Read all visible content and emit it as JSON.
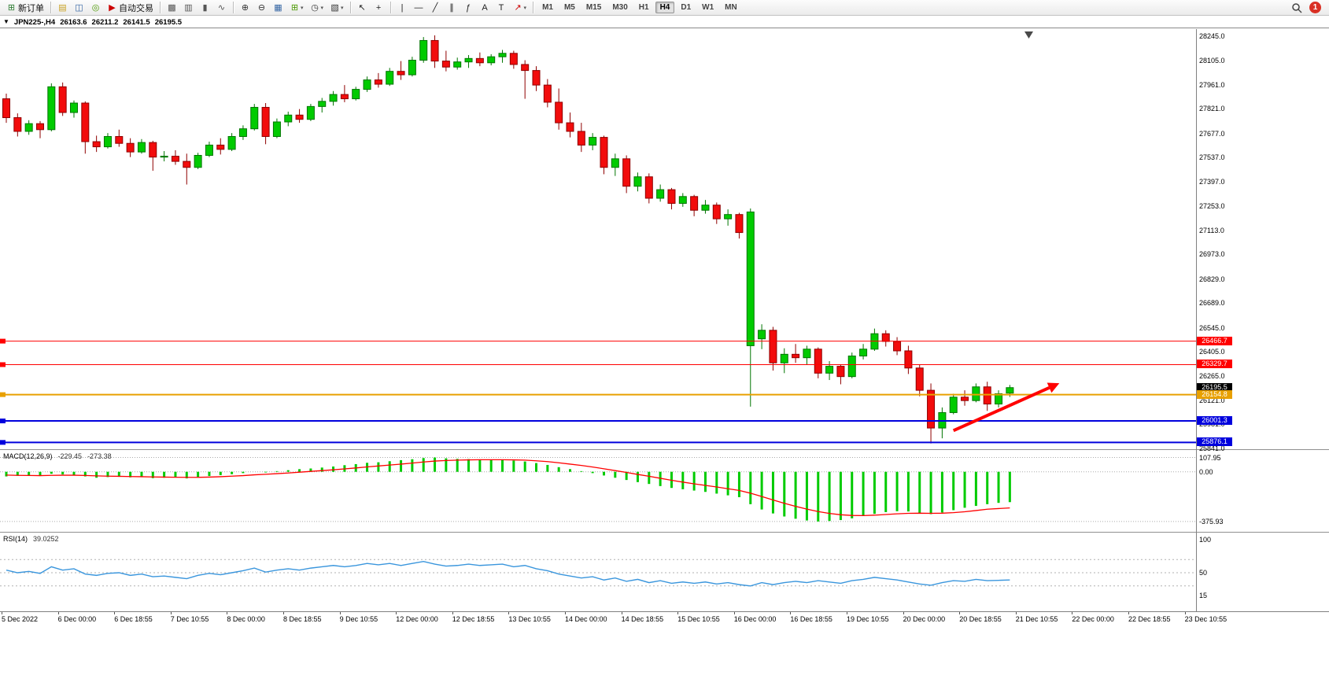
{
  "toolbar": {
    "new_order_label": "新订单",
    "autotrading_label": "自动交易",
    "notification_count": "1",
    "periods": [
      "M1",
      "M5",
      "M15",
      "M30",
      "H1",
      "H4",
      "D1",
      "W1",
      "MN"
    ],
    "active_period": "H4",
    "items": [
      {
        "name": "new-order-button",
        "icon": "order-ticket-icon",
        "glyph": "⊞",
        "color": "#2e7d32",
        "label": "新订单"
      },
      {
        "type": "sep"
      },
      {
        "name": "profiles-button",
        "icon": "profiles-icon",
        "glyph": "▤",
        "color": "#c8a020"
      },
      {
        "name": "market-watch-button",
        "icon": "market-watch-icon",
        "glyph": "◫",
        "color": "#3465a4"
      },
      {
        "name": "navigator-button",
        "icon": "navigator-icon",
        "glyph": "◎",
        "color": "#4e9a06"
      },
      {
        "name": "autotrading-button",
        "icon": "autotrading-icon",
        "glyph": "▶",
        "color": "#cc0000",
        "label": "自动交易"
      },
      {
        "type": "sep"
      },
      {
        "name": "new-chart-button",
        "icon": "new-chart-icon",
        "glyph": "▩",
        "color": "#555555"
      },
      {
        "name": "bar-chart-button",
        "icon": "bar-chart-icon",
        "glyph": "▥",
        "color": "#555555"
      },
      {
        "name": "candlestick-chart-button",
        "icon": "candlestick-icon",
        "glyph": "▮",
        "color": "#555555"
      },
      {
        "name": "line-chart-button",
        "icon": "line-chart-icon",
        "glyph": "∿",
        "color": "#555555"
      },
      {
        "type": "sep"
      },
      {
        "name": "zoom-in-button",
        "icon": "zoom-in-icon",
        "glyph": "⊕",
        "color": "#333333"
      },
      {
        "name": "zoom-out-button",
        "icon": "zoom-out-icon",
        "glyph": "⊖",
        "color": "#333333"
      },
      {
        "name": "tile-windows-button",
        "icon": "tile-windows-icon",
        "glyph": "▦",
        "color": "#3465a4"
      },
      {
        "name": "indicators-button",
        "icon": "indicators-icon",
        "glyph": "⊞",
        "color": "#4e9a06",
        "caret": true
      },
      {
        "name": "timeframes-button",
        "icon": "clock-icon",
        "glyph": "◷",
        "color": "#333333",
        "caret": true
      },
      {
        "name": "templates-button",
        "icon": "templates-icon",
        "glyph": "▧",
        "color": "#333333",
        "caret": true
      },
      {
        "type": "sep"
      },
      {
        "name": "cursor-button",
        "icon": "cursor-icon",
        "glyph": "↖",
        "color": "#222222"
      },
      {
        "name": "crosshair-button",
        "icon": "crosshair-icon",
        "glyph": "+",
        "color": "#222222"
      },
      {
        "type": "sep"
      },
      {
        "name": "vertical-line-button",
        "icon": "vertical-line-icon",
        "glyph": "|",
        "color": "#222222"
      },
      {
        "name": "horizontal-line-button",
        "icon": "horizontal-line-icon",
        "glyph": "—",
        "color": "#222222"
      },
      {
        "name": "trendline-button",
        "icon": "trendline-icon",
        "glyph": "╱",
        "color": "#222222"
      },
      {
        "name": "channel-button",
        "icon": "channel-icon",
        "glyph": "∥",
        "color": "#222222"
      },
      {
        "name": "fibonacci-button",
        "icon": "fibonacci-icon",
        "glyph": "ƒ",
        "color": "#222222"
      },
      {
        "name": "text-button",
        "icon": "text-icon",
        "glyph": "A",
        "color": "#222222"
      },
      {
        "name": "text-label-button",
        "icon": "text-label-icon",
        "glyph": "T",
        "color": "#222222"
      },
      {
        "name": "arrows-button",
        "icon": "arrow-symbol-icon",
        "glyph": "↗",
        "color": "#cc0000",
        "caret": true
      },
      {
        "type": "sep"
      }
    ]
  },
  "chart_header": {
    "dropdown_glyph": "▼",
    "symbol": "JPN225-,H4",
    "open": "26163.6",
    "high": "26211.2",
    "low": "26141.5",
    "close": "26195.5"
  },
  "chart_data": {
    "type": "candlestick",
    "symbol": "JPN225-",
    "timeframe": "H4",
    "colors": {
      "up": "#00cb00",
      "up_border": "#007500",
      "down": "#f20c0c",
      "down_border": "#8f0000"
    },
    "price_axis": [
      28245.0,
      28105.0,
      27961.0,
      27821.0,
      27677.0,
      27537.0,
      27397.0,
      27253.0,
      27113.0,
      26973.0,
      26829.0,
      26689.0,
      26545.0,
      26405.0,
      26265.0,
      26121.0,
      25981.0,
      25841.0
    ],
    "price_range": {
      "max": 28245.0,
      "min": 25841.0
    },
    "candles": [
      [
        27880,
        27910,
        27740,
        27770
      ],
      [
        27770,
        27795,
        27660,
        27690
      ],
      [
        27690,
        27755,
        27670,
        27735
      ],
      [
        27735,
        27750,
        27650,
        27700
      ],
      [
        27700,
        27970,
        27690,
        27950
      ],
      [
        27950,
        27975,
        27780,
        27800
      ],
      [
        27800,
        27870,
        27770,
        27855
      ],
      [
        27855,
        27865,
        27560,
        27630
      ],
      [
        27630,
        27665,
        27570,
        27600
      ],
      [
        27600,
        27680,
        27590,
        27660
      ],
      [
        27660,
        27700,
        27600,
        27620
      ],
      [
        27620,
        27650,
        27540,
        27570
      ],
      [
        27570,
        27645,
        27560,
        27625
      ],
      [
        27625,
        27635,
        27460,
        27540
      ],
      [
        27540,
        27575,
        27515,
        27545
      ],
      [
        27545,
        27580,
        27495,
        27515
      ],
      [
        27515,
        27560,
        27380,
        27480
      ],
      [
        27480,
        27565,
        27470,
        27550
      ],
      [
        27550,
        27630,
        27540,
        27610
      ],
      [
        27610,
        27650,
        27555,
        27585
      ],
      [
        27585,
        27680,
        27575,
        27660
      ],
      [
        27660,
        27725,
        27640,
        27705
      ],
      [
        27705,
        27850,
        27695,
        27830
      ],
      [
        27830,
        27855,
        27615,
        27660
      ],
      [
        27660,
        27765,
        27650,
        27745
      ],
      [
        27745,
        27805,
        27720,
        27785
      ],
      [
        27785,
        27820,
        27740,
        27760
      ],
      [
        27760,
        27850,
        27750,
        27835
      ],
      [
        27835,
        27885,
        27800,
        27865
      ],
      [
        27865,
        27925,
        27840,
        27905
      ],
      [
        27905,
        27960,
        27860,
        27880
      ],
      [
        27880,
        27950,
        27870,
        27935
      ],
      [
        27935,
        28010,
        27920,
        27990
      ],
      [
        27990,
        28030,
        27945,
        27965
      ],
      [
        27965,
        28060,
        27955,
        28040
      ],
      [
        28040,
        28100,
        27990,
        28020
      ],
      [
        28020,
        28125,
        28010,
        28105
      ],
      [
        28105,
        28240,
        28090,
        28220
      ],
      [
        28220,
        28250,
        28060,
        28100
      ],
      [
        28100,
        28160,
        28040,
        28065
      ],
      [
        28065,
        28120,
        28050,
        28095
      ],
      [
        28095,
        28135,
        28060,
        28115
      ],
      [
        28115,
        28150,
        28070,
        28090
      ],
      [
        28090,
        28140,
        28075,
        28125
      ],
      [
        28125,
        28165,
        28090,
        28145
      ],
      [
        28145,
        28160,
        28055,
        28080
      ],
      [
        28080,
        28105,
        27880,
        28045
      ],
      [
        28045,
        28070,
        27925,
        27960
      ],
      [
        27960,
        27995,
        27830,
        27860
      ],
      [
        27860,
        27940,
        27700,
        27740
      ],
      [
        27740,
        27800,
        27655,
        27690
      ],
      [
        27690,
        27740,
        27570,
        27610
      ],
      [
        27610,
        27680,
        27580,
        27655
      ],
      [
        27655,
        27665,
        27440,
        27480
      ],
      [
        27480,
        27560,
        27430,
        27530
      ],
      [
        27530,
        27550,
        27330,
        27370
      ],
      [
        27370,
        27450,
        27340,
        27425
      ],
      [
        27425,
        27445,
        27270,
        27300
      ],
      [
        27300,
        27380,
        27280,
        27350
      ],
      [
        27350,
        27360,
        27235,
        27270
      ],
      [
        27270,
        27330,
        27250,
        27310
      ],
      [
        27310,
        27320,
        27195,
        27230
      ],
      [
        27230,
        27290,
        27210,
        27260
      ],
      [
        27260,
        27275,
        27150,
        27180
      ],
      [
        27180,
        27235,
        27140,
        27205
      ],
      [
        27205,
        27215,
        27065,
        27100
      ],
      [
        26440,
        27240,
        26085,
        27220
      ],
      [
        26480,
        26565,
        26420,
        26530
      ],
      [
        26530,
        26550,
        26295,
        26340
      ],
      [
        26340,
        26425,
        26280,
        26390
      ],
      [
        26390,
        26450,
        26340,
        26370
      ],
      [
        26370,
        26440,
        26330,
        26420
      ],
      [
        26420,
        26430,
        26250,
        26280
      ],
      [
        26280,
        26350,
        26240,
        26320
      ],
      [
        26320,
        26330,
        26215,
        26260
      ],
      [
        26260,
        26400,
        26250,
        26380
      ],
      [
        26380,
        26450,
        26360,
        26420
      ],
      [
        26420,
        26540,
        26410,
        26510
      ],
      [
        26510,
        26530,
        26435,
        26465
      ],
      [
        26465,
        26490,
        26385,
        26410
      ],
      [
        26410,
        26440,
        26275,
        26310
      ],
      [
        26310,
        26330,
        26145,
        26180
      ],
      [
        26180,
        26220,
        25870,
        25960
      ],
      [
        25960,
        26080,
        25900,
        26050
      ],
      [
        26050,
        26160,
        26040,
        26140
      ],
      [
        26140,
        26180,
        26090,
        26120
      ],
      [
        26120,
        26220,
        26110,
        26200
      ],
      [
        26200,
        26230,
        26060,
        26100
      ],
      [
        26100,
        26180,
        26080,
        26160
      ],
      [
        26163.6,
        26211.2,
        26141.5,
        26195.5
      ]
    ],
    "hlines": [
      {
        "price": 26466.7,
        "color": "#ff0000",
        "badge": "26466.7",
        "width": 1
      },
      {
        "price": 26329.7,
        "color": "#ff0000",
        "badge": "26329.7",
        "width": 1
      },
      {
        "price": 26154.8,
        "color": "#e8a000",
        "badge": "26154.8",
        "width": 2
      },
      {
        "price": 26001.3,
        "color": "#0000dd",
        "badge": "26001.3",
        "width": 2
      },
      {
        "price": 25876.1,
        "color": "#0000dd",
        "badge": "25876.1",
        "width": 2
      }
    ],
    "current_price": {
      "value": 26195.5,
      "badge": "26195.5",
      "badge_bg": "#000000"
    },
    "arrow": {
      "bar_from": 84.0,
      "price_from": 25945,
      "bar_to": 92.5,
      "price_to": 26195,
      "color": "#ff0000"
    },
    "time_axis": [
      "5 Dec 2022",
      "6 Dec 00:00",
      "6 Dec 18:55",
      "7 Dec 10:55",
      "8 Dec 00:00",
      "8 Dec 18:55",
      "9 Dec 10:55",
      "12 Dec 00:00",
      "12 Dec 18:55",
      "13 Dec 10:55",
      "14 Dec 00:00",
      "14 Dec 18:55",
      "15 Dec 10:55",
      "16 Dec 00:00",
      "16 Dec 18:55",
      "19 Dec 10:55",
      "20 Dec 00:00",
      "20 Dec 18:55",
      "21 Dec 10:55",
      "22 Dec 00:00",
      "22 Dec 18:55",
      "23 Dec 10:55"
    ],
    "macd": {
      "label": "MACD(12,26,9)",
      "value_main": "-229.45",
      "value_signal": "-273.38",
      "hist_color": "#00cb00",
      "signal_color": "#ff0000",
      "scale": [
        "107.95",
        "0.00",
        "-375.93"
      ],
      "scale_values": [
        107.95,
        0,
        -375.93
      ],
      "histogram": [
        -35,
        -30,
        -28,
        -32,
        -15,
        -20,
        -25,
        -35,
        -45,
        -40,
        -38,
        -42,
        -40,
        -48,
        -45,
        -42,
        -50,
        -40,
        -32,
        -25,
        -18,
        -10,
        0,
        -5,
        5,
        12,
        20,
        25,
        32,
        40,
        50,
        58,
        68,
        72,
        80,
        88,
        95,
        104,
        107.95,
        102,
        98,
        96,
        94,
        92,
        90,
        85,
        78,
        66,
        52,
        35,
        20,
        5,
        -10,
        -28,
        -45,
        -62,
        -78,
        -92,
        -108,
        -122,
        -132,
        -142,
        -152,
        -165,
        -178,
        -192,
        -245,
        -285,
        -315,
        -338,
        -355,
        -368,
        -375.93,
        -372,
        -365,
        -352,
        -335,
        -318,
        -305,
        -298,
        -300,
        -312,
        -320,
        -308,
        -290,
        -272,
        -258,
        -245,
        -235,
        -229.45
      ],
      "signal": [
        -25,
        -27,
        -28,
        -29,
        -27,
        -26,
        -26,
        -28,
        -31,
        -33,
        -34,
        -36,
        -37,
        -39,
        -40,
        -41,
        -42,
        -42,
        -40,
        -37,
        -33,
        -29,
        -23,
        -19,
        -14,
        -9,
        -3,
        3,
        9,
        15,
        22,
        29,
        37,
        44,
        51,
        58,
        66,
        74,
        81,
        85,
        88,
        90,
        91,
        91,
        91,
        90,
        88,
        83,
        77,
        68,
        58,
        48,
        36,
        23,
        9,
        -5,
        -20,
        -34,
        -49,
        -64,
        -78,
        -91,
        -103,
        -115,
        -128,
        -141,
        -162,
        -187,
        -213,
        -238,
        -261,
        -282,
        -301,
        -315,
        -325,
        -330,
        -331,
        -328,
        -323,
        -318,
        -314,
        -313,
        -314,
        -313,
        -309,
        -302,
        -293,
        -283,
        -278,
        -273.38
      ]
    },
    "rsi": {
      "label": "RSI(14)",
      "value": "39.0252",
      "color": "#3a96dd",
      "scale": [
        "100",
        "50",
        "15"
      ],
      "scale_values": [
        100,
        50,
        15
      ],
      "levels": [
        70,
        50,
        30
      ],
      "values": [
        54,
        50,
        52,
        49,
        59,
        54,
        56,
        48,
        46,
        49,
        50,
        46,
        48,
        44,
        45,
        43,
        41,
        46,
        49,
        47,
        50,
        53,
        57,
        51,
        54,
        56,
        54,
        57,
        59,
        61,
        59,
        61,
        64,
        62,
        64,
        61,
        64,
        67,
        63,
        60,
        61,
        63,
        61,
        62,
        63,
        59,
        61,
        56,
        53,
        48,
        45,
        42,
        44,
        39,
        42,
        37,
        40,
        35,
        38,
        34,
        36,
        34,
        36,
        33,
        35,
        32,
        30,
        35,
        32,
        35,
        37,
        35,
        38,
        36,
        34,
        38,
        40,
        43,
        41,
        39,
        36,
        33,
        31,
        35,
        38,
        37,
        40,
        38,
        38.5,
        39.0252
      ]
    }
  }
}
